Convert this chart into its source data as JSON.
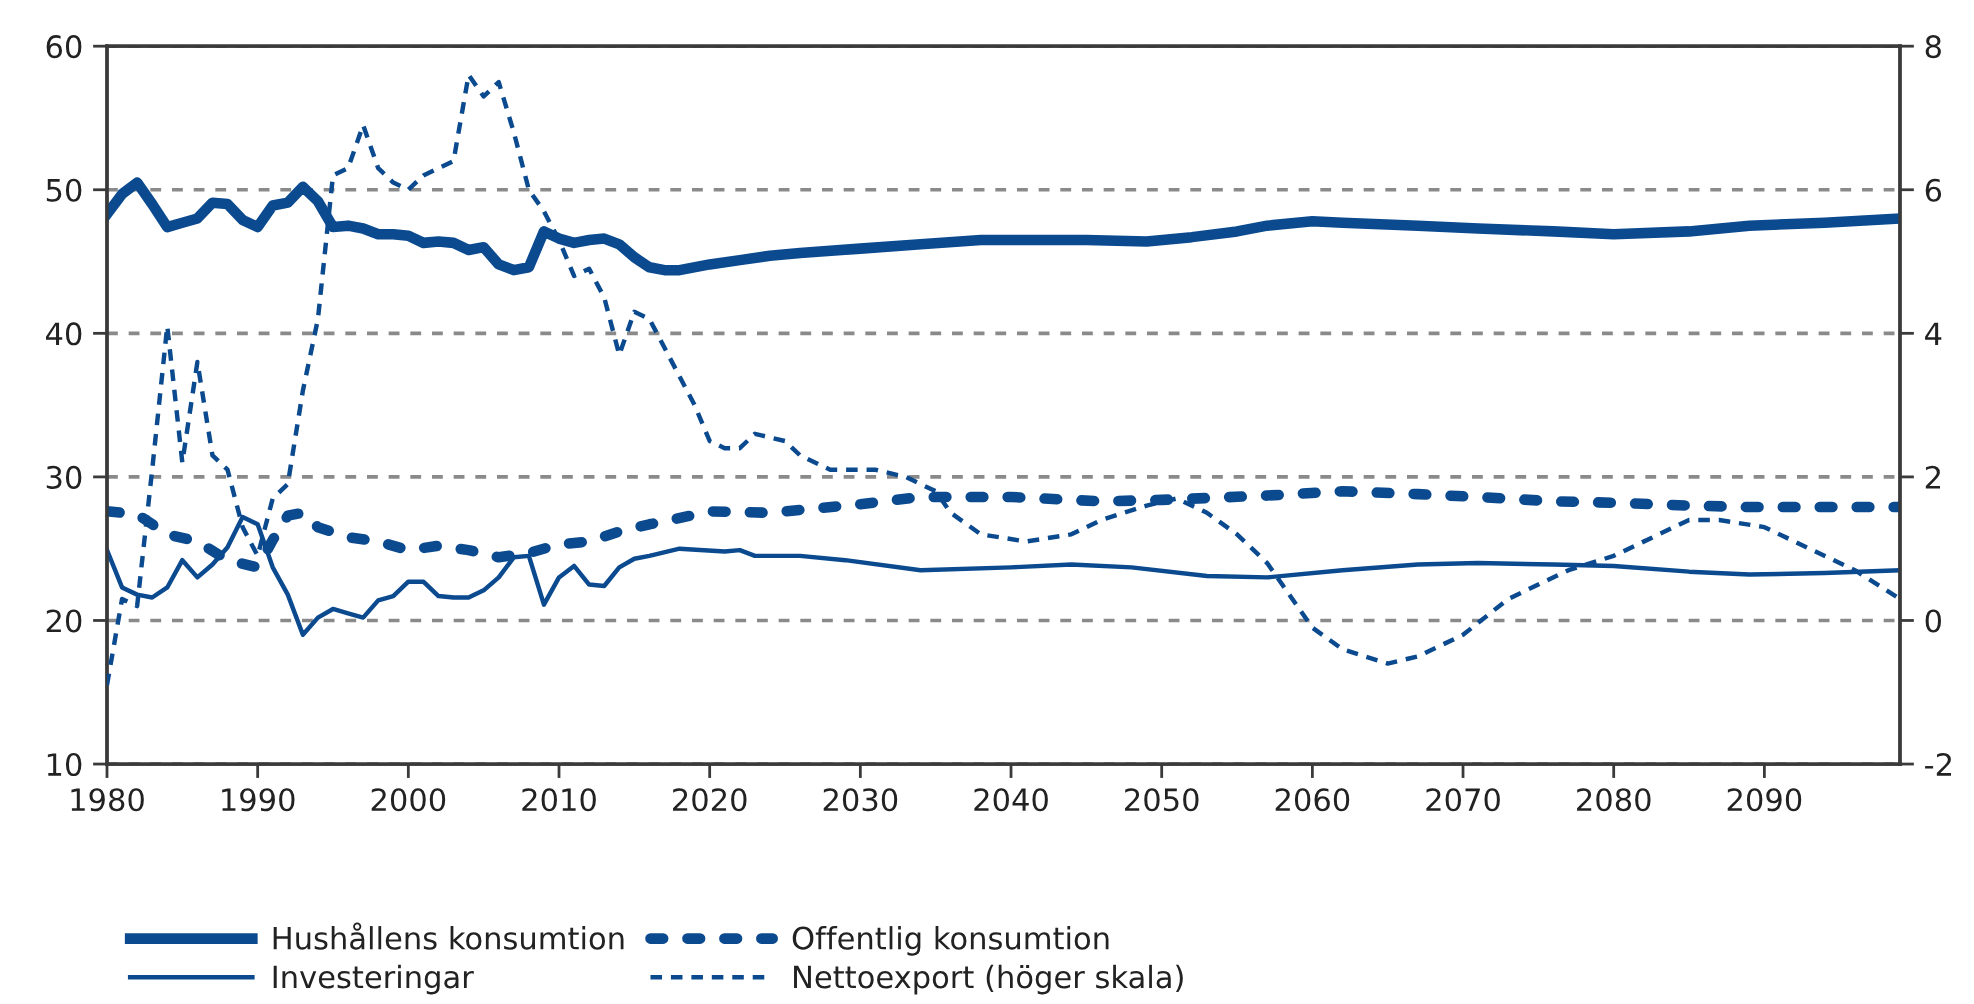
{
  "chart_data": {
    "type": "line",
    "xlim": [
      1980,
      2099
    ],
    "xticks": [
      1980,
      1990,
      2000,
      2010,
      2020,
      2030,
      2040,
      2050,
      2060,
      2070,
      2080,
      2090
    ],
    "ylim": [
      10,
      60
    ],
    "yticks": [
      10,
      20,
      30,
      40,
      50,
      60
    ],
    "y2lim": [
      -2,
      8
    ],
    "y2ticks": [
      -2,
      0,
      2,
      4,
      6,
      8
    ],
    "grid": "y",
    "legend": "bottom",
    "series": [
      {
        "name": "Hushållens konsumtion",
        "color": "#0b4a8f",
        "line_style": "solid",
        "x": [
          1980,
          1981,
          1982,
          1983,
          1984,
          1985,
          1986,
          1987,
          1988,
          1989,
          1990,
          1991,
          1992,
          1993,
          1994,
          1995,
          1996,
          1997,
          1998,
          1999,
          2000,
          2001,
          2002,
          2003,
          2004,
          2005,
          2006,
          2007,
          2008,
          2009,
          2010,
          2011,
          2012,
          2013,
          2014,
          2015,
          2016,
          2017,
          2018,
          2020,
          2022,
          2024,
          2026,
          2030,
          2034,
          2038,
          2040,
          2045,
          2049,
          2052,
          2055,
          2057,
          2060,
          2062,
          2067,
          2071,
          2076,
          2080,
          2085,
          2089,
          2094,
          2099
        ],
        "values": [
          48.3,
          49.7,
          50.5,
          49.0,
          47.4,
          47.7,
          48.0,
          49.1,
          49.0,
          47.9,
          47.4,
          48.9,
          49.1,
          50.2,
          49.2,
          47.4,
          47.5,
          47.3,
          46.9,
          46.9,
          46.8,
          46.3,
          46.4,
          46.3,
          45.8,
          46.0,
          44.8,
          44.4,
          44.6,
          47.1,
          46.6,
          46.3,
          46.5,
          46.6,
          46.2,
          45.3,
          44.6,
          44.4,
          44.4,
          44.8,
          45.1,
          45.4,
          45.6,
          45.9,
          46.2,
          46.5,
          46.5,
          46.5,
          46.4,
          46.7,
          47.1,
          47.5,
          47.8,
          47.7,
          47.5,
          47.3,
          47.1,
          46.9,
          47.1,
          47.5,
          47.7,
          48.0
        ]
      },
      {
        "name": "Offentlig konsumtion",
        "color": "#0b4a8f",
        "line_style": "dashed",
        "x": [
          1980,
          1982,
          1984,
          1986,
          1988,
          1990,
          1991,
          1992,
          1993,
          1994,
          1996,
          1998,
          2000,
          2002,
          2004,
          2006,
          2008,
          2010,
          2012,
          2014,
          2016,
          2017,
          2020,
          2024,
          2030,
          2034,
          2040,
          2046,
          2050,
          2057,
          2062,
          2067,
          2071,
          2076,
          2080,
          2085,
          2089,
          2094,
          2099
        ],
        "values": [
          27.6,
          27.4,
          26.0,
          25.5,
          24.2,
          23.7,
          25.6,
          27.3,
          27.5,
          26.5,
          25.8,
          25.5,
          24.9,
          25.2,
          24.9,
          24.4,
          24.7,
          25.3,
          25.5,
          26.2,
          26.7,
          26.9,
          27.6,
          27.5,
          28.1,
          28.6,
          28.6,
          28.3,
          28.4,
          28.7,
          29.0,
          28.8,
          28.6,
          28.3,
          28.2,
          28.0,
          27.9,
          27.9,
          27.9
        ]
      },
      {
        "name": "Investeringar",
        "color": "#0b4a8f",
        "line_style": "solid",
        "x": [
          1980,
          1981,
          1982,
          1983,
          1984,
          1985,
          1986,
          1987,
          1988,
          1989,
          1990,
          1991,
          1992,
          1993,
          1994,
          1995,
          1996,
          1997,
          1998,
          1999,
          2000,
          2001,
          2002,
          2003,
          2004,
          2005,
          2006,
          2007,
          2008,
          2009,
          2010,
          2011,
          2012,
          2013,
          2014,
          2015,
          2016,
          2018,
          2021,
          2022,
          2023,
          2026,
          2029,
          2034,
          2040,
          2044,
          2048,
          2053,
          2057,
          2062,
          2067,
          2071,
          2076,
          2080,
          2085,
          2089,
          2094,
          2099
        ],
        "values": [
          24.9,
          22.3,
          21.8,
          21.6,
          22.3,
          24.2,
          23.0,
          23.9,
          25.1,
          27.2,
          26.7,
          23.7,
          21.8,
          19.0,
          20.2,
          20.8,
          20.5,
          20.2,
          21.4,
          21.7,
          22.7,
          22.7,
          21.7,
          21.6,
          21.6,
          22.1,
          23.0,
          24.4,
          24.5,
          21.1,
          23.0,
          23.8,
          22.5,
          22.4,
          23.7,
          24.3,
          24.5,
          25.0,
          24.8,
          24.9,
          24.5,
          24.5,
          24.2,
          23.5,
          23.7,
          23.9,
          23.7,
          23.1,
          23.0,
          23.5,
          23.9,
          24.0,
          23.9,
          23.8,
          23.4,
          23.2,
          23.3,
          23.5
        ]
      },
      {
        "name": "Nettoexport (höger skala)",
        "color": "#0b4a8f",
        "line_style": "dashed",
        "axis": "y2",
        "x": [
          1980,
          1981,
          1982,
          1983,
          1984,
          1985,
          1986,
          1987,
          1988,
          1989,
          1990,
          1991,
          1992,
          1993,
          1994,
          1995,
          1996,
          1997,
          1998,
          1999,
          2000,
          2001,
          2002,
          2003,
          2004,
          2005,
          2006,
          2007,
          2008,
          2009,
          2010,
          2011,
          2012,
          2013,
          2014,
          2015,
          2016,
          2018,
          2019,
          2020,
          2021,
          2022,
          2023,
          2025,
          2026,
          2028,
          2031,
          2033,
          2035,
          2036,
          2038,
          2041,
          2044,
          2046,
          2049,
          2051,
          2053,
          2055,
          2057,
          2058,
          2060,
          2062,
          2065,
          2067,
          2070,
          2073,
          2077,
          2080,
          2083,
          2085,
          2087,
          2090,
          2093,
          2096,
          2099
        ],
        "values": [
          -0.9,
          0.3,
          0.2,
          2.1,
          4.1,
          2.2,
          3.6,
          2.3,
          2.1,
          1.3,
          0.9,
          1.7,
          1.9,
          3.2,
          4.2,
          6.2,
          6.3,
          6.9,
          6.3,
          6.1,
          6.0,
          6.2,
          6.3,
          6.4,
          7.6,
          7.3,
          7.5,
          6.8,
          6.0,
          5.7,
          5.3,
          4.8,
          4.9,
          4.5,
          3.7,
          4.3,
          4.2,
          3.4,
          3.0,
          2.5,
          2.4,
          2.4,
          2.6,
          2.5,
          2.3,
          2.1,
          2.1,
          2.0,
          1.8,
          1.5,
          1.2,
          1.1,
          1.2,
          1.4,
          1.6,
          1.7,
          1.5,
          1.2,
          0.8,
          0.5,
          -0.1,
          -0.4,
          -0.6,
          -0.5,
          -0.2,
          0.3,
          0.7,
          0.9,
          1.2,
          1.4,
          1.4,
          1.3,
          1.0,
          0.7,
          0.3
        ]
      }
    ]
  }
}
